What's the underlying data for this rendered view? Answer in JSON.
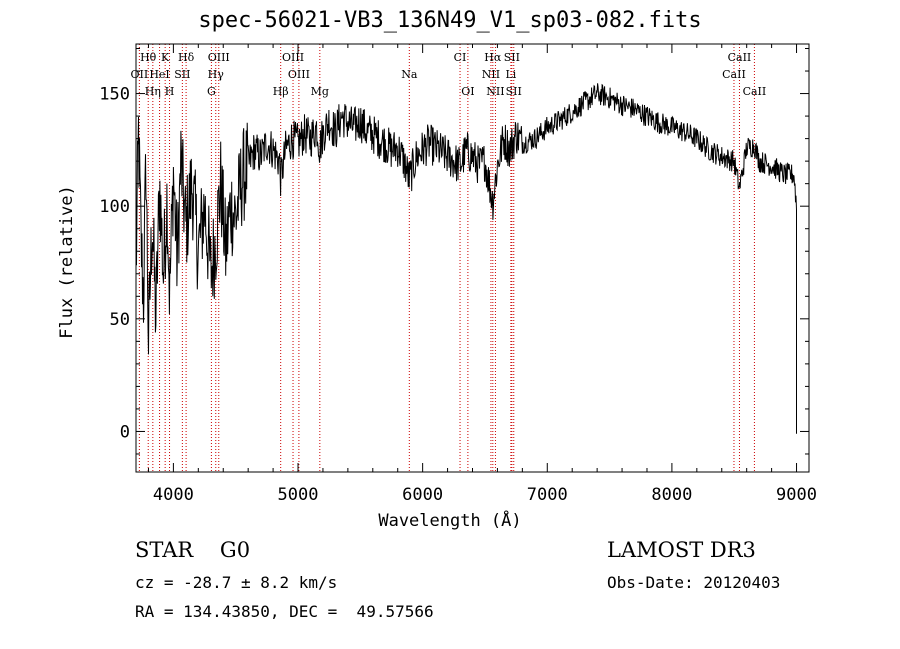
{
  "chart_data": {
    "type": "line",
    "title": "spec-56021-VB3_136N49_V1_sp03-082.fits",
    "xlabel": "Wavelength (Å)",
    "ylabel": "Flux (relative)",
    "xlim": [
      3700,
      9100
    ],
    "ylim": [
      -18,
      172
    ],
    "x_ticks": [
      4000,
      5000,
      6000,
      7000,
      8000,
      9000
    ],
    "x_tick_labels": [
      "4000",
      "5000",
      "6000",
      "7000",
      "8000",
      "9000"
    ],
    "y_ticks": [
      0,
      50,
      100,
      150
    ],
    "y_tick_labels": [
      "0",
      "50",
      "100",
      "150"
    ],
    "series": [
      {
        "name": "flux",
        "x": [
          3700,
          3720,
          3740,
          3760,
          3780,
          3800,
          3830,
          3860,
          3890,
          3920,
          3950,
          3970,
          4000,
          4030,
          4060,
          4100,
          4150,
          4200,
          4250,
          4300,
          4340,
          4380,
          4420,
          4460,
          4500,
          4550,
          4600,
          4650,
          4700,
          4750,
          4800,
          4850,
          4861,
          4900,
          4950,
          5000,
          5050,
          5100,
          5150,
          5173,
          5200,
          5250,
          5300,
          5350,
          5400,
          5450,
          5500,
          5550,
          5600,
          5650,
          5700,
          5750,
          5800,
          5850,
          5893,
          5950,
          6000,
          6050,
          6100,
          6150,
          6200,
          6250,
          6300,
          6350,
          6400,
          6450,
          6500,
          6563,
          6600,
          6650,
          6700,
          6750,
          6800,
          6900,
          7000,
          7100,
          7200,
          7300,
          7400,
          7500,
          7600,
          7700,
          7800,
          7900,
          8000,
          8100,
          8200,
          8300,
          8400,
          8498,
          8542,
          8600,
          8662,
          8700,
          8800,
          8900,
          8980,
          9000
        ],
        "y": [
          70,
          132,
          85,
          60,
          120,
          40,
          95,
          50,
          110,
          70,
          105,
          60,
          115,
          75,
          120,
          90,
          110,
          80,
          100,
          70,
          85,
          110,
          80,
          100,
          95,
          112,
          118,
          125,
          122,
          128,
          125,
          120,
          112,
          125,
          130,
          128,
          132,
          130,
          135,
          126,
          132,
          138,
          133,
          140,
          137,
          135,
          138,
          133,
          132,
          130,
          128,
          125,
          126,
          120,
          112,
          122,
          125,
          128,
          126,
          124,
          122,
          120,
          118,
          125,
          122,
          118,
          120,
          102,
          118,
          130,
          125,
          132,
          128,
          130,
          135,
          138,
          142,
          146,
          150,
          148,
          145,
          143,
          140,
          137,
          135,
          133,
          130,
          125,
          122,
          120,
          108,
          126,
          127,
          120,
          118,
          114,
          114,
          100
        ]
      }
    ],
    "line_markers": [
      {
        "label": "Hθ",
        "wavelength": 3798,
        "row": 0
      },
      {
        "label": "K",
        "wavelength": 3934,
        "row": 0
      },
      {
        "label": "Hδ",
        "wavelength": 4102,
        "row": 0
      },
      {
        "label": "OIII",
        "wavelength": 4364,
        "row": 0
      },
      {
        "label": "OIII",
        "wavelength": 4960,
        "row": 0
      },
      {
        "label": "CI",
        "wavelength": 6300,
        "row": 0
      },
      {
        "label": "Hα",
        "wavelength": 6563,
        "row": 0
      },
      {
        "label": "SII",
        "wavelength": 6716,
        "row": 0
      },
      {
        "label": "CaII",
        "wavelength": 8542,
        "row": 0
      },
      {
        "label": "OII",
        "wavelength": 3727,
        "row": 1
      },
      {
        "label": "HeI",
        "wavelength": 3889,
        "row": 1
      },
      {
        "label": "SII",
        "wavelength": 4072,
        "row": 1
      },
      {
        "label": "Hγ",
        "wavelength": 4340,
        "row": 1
      },
      {
        "label": "OIII",
        "wavelength": 5007,
        "row": 1
      },
      {
        "label": "Na",
        "wavelength": 5893,
        "row": 1
      },
      {
        "label": "NII",
        "wavelength": 6548,
        "row": 1
      },
      {
        "label": "Li",
        "wavelength": 6708,
        "row": 1
      },
      {
        "label": "CaII",
        "wavelength": 8498,
        "row": 1
      },
      {
        "label": "Hη",
        "wavelength": 3835,
        "row": 2
      },
      {
        "label": "H",
        "wavelength": 3969,
        "row": 2
      },
      {
        "label": "G",
        "wavelength": 4305,
        "row": 2
      },
      {
        "label": "Hβ",
        "wavelength": 4861,
        "row": 2
      },
      {
        "label": "Mg",
        "wavelength": 5175,
        "row": 2
      },
      {
        "label": "OI",
        "wavelength": 6363,
        "row": 2
      },
      {
        "label": "NII",
        "wavelength": 6584,
        "row": 2
      },
      {
        "label": "SII",
        "wavelength": 6731,
        "row": 2
      },
      {
        "label": "CaII",
        "wavelength": 8662,
        "row": 2
      }
    ]
  },
  "info": {
    "star_line": "STAR    G0",
    "cz_line": "cz = -28.7 ± 8.2 km/s",
    "radec_line": "RA = 134.43850, DEC =  49.57566",
    "survey": "LAMOST DR3",
    "obs_date_line": "Obs-Date: 20120403"
  },
  "colors": {
    "line_marker": "#cc0000",
    "spectrum": "#000000"
  }
}
